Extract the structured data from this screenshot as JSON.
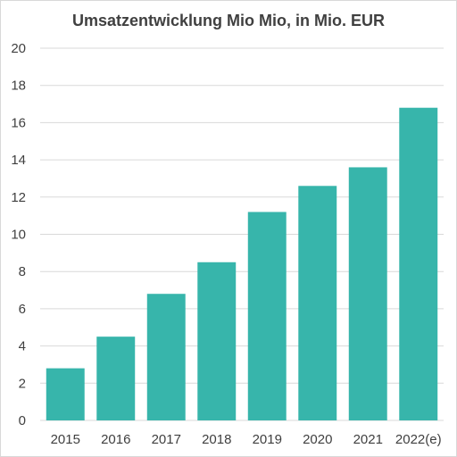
{
  "chart_data": {
    "type": "bar",
    "title": "Umsatzentwicklung Mio Mio, in  Mio. EUR",
    "categories": [
      "2015",
      "2016",
      "2017",
      "2018",
      "2019",
      "2020",
      "2021",
      "2022(e)"
    ],
    "values": [
      2.8,
      4.5,
      6.8,
      8.5,
      11.2,
      12.6,
      13.6,
      16.8
    ],
    "ylim": [
      0,
      20
    ],
    "yticks": [
      "0",
      "2",
      "4",
      "6",
      "8",
      "10",
      "12",
      "14",
      "16",
      "18",
      "20"
    ],
    "grid": true,
    "bar_color": "#37b5ab",
    "grid_color": "#d9d9d9"
  }
}
